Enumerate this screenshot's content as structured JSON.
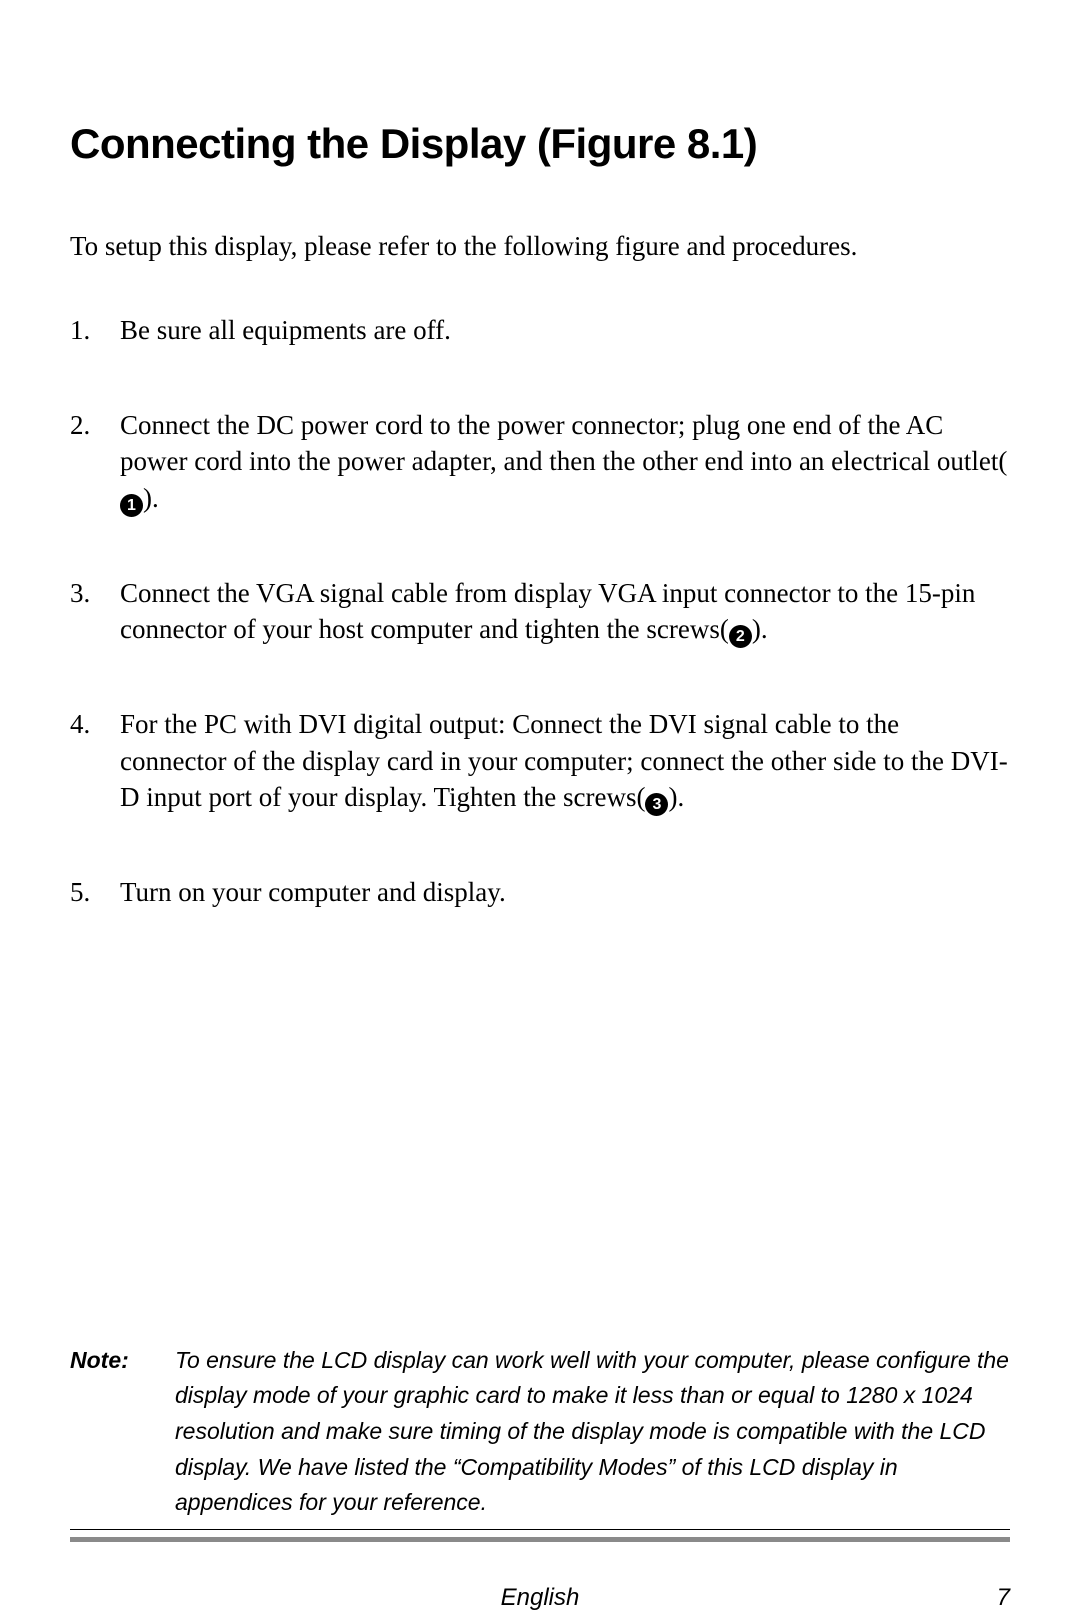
{
  "heading": "Connecting the Display  (Figure 8.1)",
  "intro": "To setup this display, please refer to the following figure and procedures.",
  "steps": [
    {
      "pre": "Be sure all equipments are off.",
      "circ": null,
      "post": ""
    },
    {
      "pre": "Connect the DC power cord to the power connector; plug one end of the AC power cord into the power adapter, and then the other end into an electrical outlet(",
      "circ": "1",
      "post": ")."
    },
    {
      "pre": "Connect the VGA signal cable from display VGA input connector to the 15-pin connector of your host computer and tighten the screws(",
      "circ": "2",
      "post": ")."
    },
    {
      "pre": "For the PC with DVI digital output: Connect the DVI signal cable to the connector of the display card in your computer; connect the other side to the DVI-D input port of your display. Tighten the screws(",
      "circ": "3",
      "post": ")."
    },
    {
      "pre": "Turn on your computer and display.",
      "circ": null,
      "post": ""
    }
  ],
  "note": {
    "label": "Note:",
    "body": "To ensure the LCD display can work well with your computer, please configure the display mode of your graphic card to make it less than or equal to 1280 x 1024 resolution and make sure timing of the display mode is compatible with the LCD display. We have listed the “Compatibility Modes” of this LCD display in appendices for your reference."
  },
  "footer": {
    "language": "English",
    "page": "7"
  },
  "colors": {
    "text": "#000000",
    "bg": "#ffffff",
    "bar": "#8a8a8a"
  }
}
